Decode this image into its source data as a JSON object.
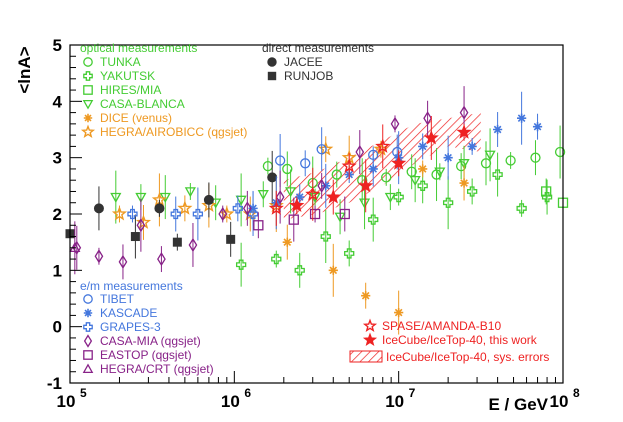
{
  "chart_data": {
    "type": "scatter",
    "xlabel": "E / GeV",
    "ylabel": "<lnA>",
    "x_scale": "log",
    "xlim": [
      100000,
      100000000
    ],
    "ylim": [
      -1,
      5
    ],
    "x_ticks": [
      {
        "value": 100000,
        "base": "10",
        "exp": "5"
      },
      {
        "value": 1000000,
        "base": "10",
        "exp": "6"
      },
      {
        "value": 10000000,
        "base": "10",
        "exp": "7"
      },
      {
        "value": 100000000,
        "base": "10",
        "exp": "8"
      }
    ],
    "y_ticks": [
      "-1",
      "0",
      "1",
      "2",
      "3",
      "4",
      "5"
    ],
    "legend_groups": [
      {
        "title": "optical measurements",
        "color": "#44cc33"
      },
      {
        "title": "direct measurements",
        "color": "#333333"
      },
      {
        "title": "e/m measurements",
        "color": "#4477dd"
      }
    ],
    "series": [
      {
        "name": "TUNKA",
        "group": "optical",
        "marker": "circle-open",
        "color": "#44cc33",
        "points": [
          [
            1600000,
            2.85
          ],
          [
            2100000,
            2.8
          ],
          [
            3000000,
            2.55
          ],
          [
            4200000,
            2.7
          ],
          [
            6000000,
            2.6
          ],
          [
            8400000,
            2.65
          ],
          [
            12000000,
            2.75
          ],
          [
            17000000,
            2.7
          ],
          [
            24000000,
            2.85
          ],
          [
            34000000,
            2.9
          ],
          [
            48000000,
            2.95
          ],
          [
            68000000,
            3.0
          ],
          [
            96000000,
            3.1
          ]
        ]
      },
      {
        "name": "YAKUTSK",
        "group": "optical",
        "marker": "cross-open",
        "color": "#44cc33",
        "points": [
          [
            1100000,
            1.1
          ],
          [
            1800000,
            1.2
          ],
          [
            2500000,
            1.0
          ],
          [
            3600000,
            1.6
          ],
          [
            5000000,
            1.3
          ],
          [
            7000000,
            1.9
          ],
          [
            10000000,
            2.3
          ],
          [
            14000000,
            2.5
          ],
          [
            20000000,
            2.2
          ],
          [
            28000000,
            2.4
          ],
          [
            40000000,
            2.7
          ],
          [
            56000000,
            2.1
          ],
          [
            80000000,
            2.3
          ]
        ]
      },
      {
        "name": "HIRES/MIA",
        "group": "optical",
        "marker": "square-open",
        "color": "#44cc33",
        "points": [
          [
            79000000,
            2.4
          ],
          [
            100000000,
            2.2
          ]
        ]
      },
      {
        "name": "CASA-BLANCA",
        "group": "optical",
        "marker": "tri-down-open",
        "color": "#44cc33",
        "points": [
          [
            190000,
            2.3
          ],
          [
            270000,
            2.3
          ],
          [
            380000,
            2.3
          ],
          [
            540000,
            2.4
          ],
          [
            770000,
            2.2
          ],
          [
            1100000,
            2.25
          ],
          [
            1500000,
            2.35
          ],
          [
            2200000,
            2.4
          ],
          [
            3100000,
            2.3
          ],
          [
            4400000,
            1.95
          ],
          [
            6200000,
            2.2
          ],
          [
            8900000,
            2.3
          ],
          [
            12600000,
            2.6
          ],
          [
            17800000,
            2.75
          ],
          [
            25000000,
            2.9
          ],
          [
            36000000,
            3.05
          ]
        ]
      },
      {
        "name": "DICE (venus)",
        "group": "optical",
        "marker": "star-asterisk",
        "color": "#ee9922",
        "points": [
          [
            2100000,
            1.5
          ],
          [
            4000000,
            1.0
          ],
          [
            6300000,
            0.55
          ],
          [
            10000000,
            0.25
          ],
          [
            14000000,
            2.8
          ],
          [
            25000000,
            2.55
          ]
        ]
      },
      {
        "name": "HEGRA/AIROBICC (qgsjet)",
        "group": "optical",
        "marker": "star-open",
        "color": "#ee9922",
        "points": [
          [
            200000,
            2.0
          ],
          [
            280000,
            1.85
          ],
          [
            350000,
            2.25
          ],
          [
            500000,
            2.1
          ],
          [
            700000,
            2.15
          ],
          [
            900000,
            2.0
          ],
          [
            1250000,
            2.0
          ],
          [
            1800000,
            2.15
          ],
          [
            3600000,
            3.15
          ],
          [
            5000000,
            3.0
          ],
          [
            7800000,
            3.15
          ]
        ]
      },
      {
        "name": "JACEE",
        "group": "direct",
        "marker": "circle-filled",
        "color": "#333333",
        "points": [
          [
            150000,
            2.1
          ],
          [
            350000,
            2.1
          ],
          [
            700000,
            2.25
          ],
          [
            1700000,
            2.65
          ]
        ]
      },
      {
        "name": "RUNJOB",
        "group": "direct",
        "marker": "square-filled",
        "color": "#333333",
        "points": [
          [
            100000,
            1.65
          ],
          [
            250000,
            1.6
          ],
          [
            450000,
            1.5
          ],
          [
            950000,
            1.55
          ]
        ]
      },
      {
        "name": "TIBET",
        "group": "em",
        "marker": "circle-open",
        "color": "#4477dd",
        "points": [
          [
            1900000,
            2.95
          ],
          [
            2700000,
            2.9
          ],
          [
            3400000,
            3.15
          ],
          [
            7000000,
            3.05
          ],
          [
            9800000,
            3.1
          ]
        ]
      },
      {
        "name": "KASCADE",
        "group": "em",
        "marker": "star-asterisk",
        "color": "#4477dd",
        "points": [
          [
            1300000,
            2.1
          ],
          [
            1800000,
            2.2
          ],
          [
            2500000,
            2.3
          ],
          [
            3600000,
            2.5
          ],
          [
            5000000,
            2.7
          ],
          [
            7000000,
            2.8
          ],
          [
            10000000,
            3.0
          ],
          [
            14000000,
            3.2
          ],
          [
            20000000,
            3.0
          ],
          [
            28000000,
            3.2
          ],
          [
            40000000,
            3.5
          ],
          [
            56000000,
            3.7
          ],
          [
            70000000,
            3.55
          ]
        ]
      },
      {
        "name": "GRAPES-3",
        "group": "em",
        "marker": "cross-open",
        "color": "#4477dd",
        "points": [
          [
            240000,
            2.0
          ],
          [
            440000,
            2.0
          ],
          [
            600000,
            2.0
          ],
          [
            1050000,
            2.1
          ],
          [
            1300000,
            2.0
          ]
        ]
      },
      {
        "name": "CASA-MIA (qgsjet)",
        "group": "em",
        "marker": "diamond-open",
        "color": "#882288",
        "points": [
          [
            110000,
            1.4
          ],
          [
            150000,
            1.25
          ],
          [
            210000,
            1.15
          ],
          [
            270000,
            1.8
          ],
          [
            360000,
            1.2
          ],
          [
            560000,
            1.45
          ],
          [
            850000,
            2.0
          ],
          [
            1200000,
            2.1
          ],
          [
            1900000,
            2.3
          ],
          [
            3400000,
            2.5
          ],
          [
            5800000,
            3.1
          ],
          [
            9500000,
            3.6
          ],
          [
            15000000,
            3.7
          ],
          [
            25000000,
            3.8
          ]
        ]
      },
      {
        "name": "EASTOP (qgsjet)",
        "group": "em",
        "marker": "square-open",
        "color": "#882288",
        "points": [
          [
            1400000,
            1.8
          ],
          [
            2300000,
            1.9
          ],
          [
            3100000,
            2.0
          ],
          [
            4700000,
            2.0
          ]
        ]
      },
      {
        "name": "HEGRA/CRT (qgsjet)",
        "group": "em",
        "marker": "tri-up-open",
        "color": "#882288",
        "points": [
          [
            107000,
            1.4
          ]
        ]
      },
      {
        "name": "SPASE/AMANDA-B10",
        "group": "icecube",
        "marker": "star-open",
        "color": "#ee2222",
        "points": [
          [
            1800000,
            2.1
          ],
          [
            3000000,
            2.35
          ],
          [
            5000000,
            2.85
          ],
          [
            8000000,
            3.2
          ]
        ]
      },
      {
        "name": "IceCube/IceTop-40, this work",
        "group": "icecube",
        "marker": "star-filled",
        "color": "#ee2222",
        "points": [
          [
            2400000,
            2.15
          ],
          [
            4000000,
            2.3
          ],
          [
            6300000,
            2.5
          ],
          [
            10000000,
            2.9
          ],
          [
            15800000,
            3.35
          ],
          [
            25000000,
            3.45
          ]
        ]
      }
    ],
    "sys_band": {
      "name": "IceCube/IceTop-40, sys. errors",
      "color": "#ee2222",
      "points": [
        [
          2000000,
          1.9,
          2.6
        ],
        [
          3200000,
          2.0,
          2.75
        ],
        [
          5000000,
          2.2,
          3.0
        ],
        [
          7900000,
          2.5,
          3.3
        ],
        [
          12600000,
          2.9,
          3.6
        ],
        [
          20000000,
          3.2,
          3.7
        ],
        [
          31600000,
          3.1,
          3.8
        ]
      ]
    },
    "legend_entries": [
      {
        "label": "TUNKA",
        "series": 0
      },
      {
        "label": "YAKUTSK",
        "series": 1
      },
      {
        "label": "HIRES/MIA",
        "series": 2
      },
      {
        "label": "CASA-BLANCA",
        "series": 3
      },
      {
        "label": "DICE (venus)",
        "series": 4
      },
      {
        "label": "HEGRA/AIROBICC (qgsjet)",
        "series": 5
      },
      {
        "label": "JACEE",
        "series": 6
      },
      {
        "label": "RUNJOB",
        "series": 7
      },
      {
        "label": "TIBET",
        "series": 8
      },
      {
        "label": "KASCADE",
        "series": 9
      },
      {
        "label": "GRAPES-3",
        "series": 10
      },
      {
        "label": "CASA-MIA (qgsjet)",
        "series": 11
      },
      {
        "label": "EASTOP (qgsjet)",
        "series": 12
      },
      {
        "label": "HEGRA/CRT (qgsjet)",
        "series": 13
      },
      {
        "label": "SPASE/AMANDA-B10",
        "series": 14
      },
      {
        "label": "IceCube/IceTop-40, this work",
        "series": 15
      },
      {
        "label": "IceCube/IceTop-40, sys. errors",
        "series": -1
      }
    ]
  }
}
